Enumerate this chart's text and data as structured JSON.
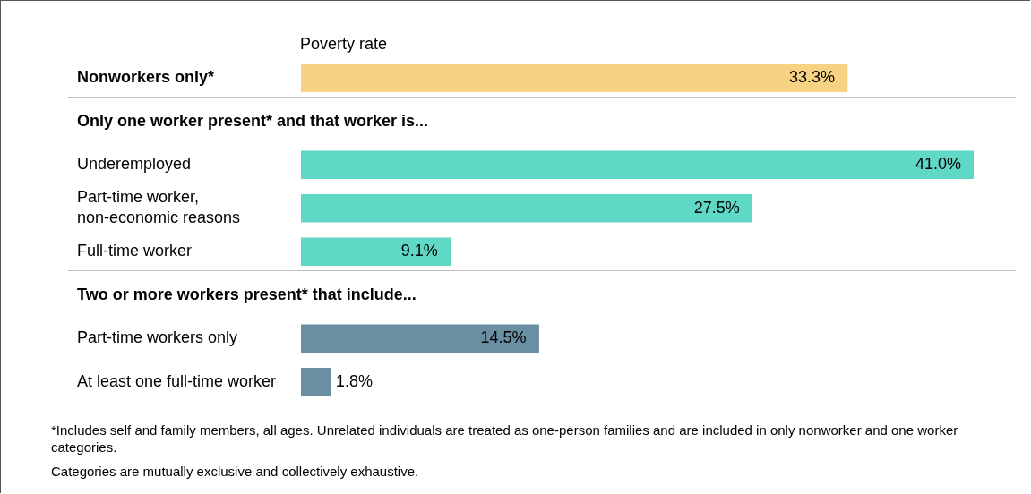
{
  "chart_data": {
    "type": "bar",
    "orientation": "horizontal",
    "xlabel": "Poverty rate",
    "categories": [
      "Nonworkers only*",
      "Only one worker present* and that worker is...",
      "Underemployed",
      "Part-time worker, non-economic reasons",
      "Full-time worker",
      "Two or more workers present* that include...",
      "Part-time workers only",
      "At least one full-time worker"
    ],
    "values": [
      33.3,
      null,
      41.0,
      27.5,
      9.1,
      null,
      14.5,
      1.8
    ],
    "colors": [
      "#f7d282",
      null,
      "#5fd9c6",
      "#5fd9c6",
      "#5fd9c6",
      null,
      "#6a8fa2",
      "#6a8fa2"
    ],
    "value_labels": [
      "33.3%",
      null,
      "41.0%",
      "27.5%",
      "9.1%",
      null,
      "14.5%",
      "1.8%"
    ],
    "legend": false,
    "annotations": [
      "*Includes self and family members, all ages. Unrelated individuals are treated as one-person families and are included in only nonworker and one worker categories.",
      "Categories are mutually exclusive and collectively exhaustive."
    ]
  }
}
